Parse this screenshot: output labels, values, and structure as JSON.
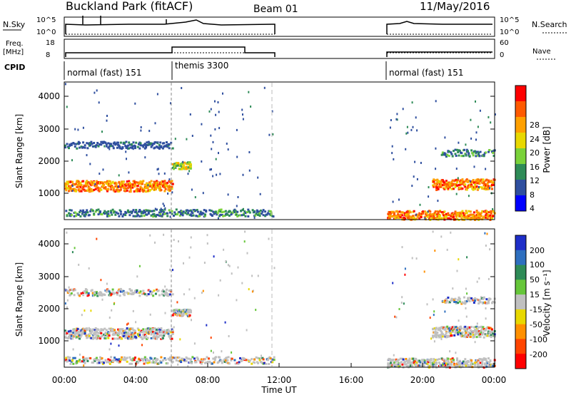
{
  "header": {
    "station": "Buckland Park (fitACF)",
    "beam": "Beam 01",
    "date": "11/May/2016"
  },
  "strips": {
    "nsky_label": "N.Sky",
    "nsearch_label": "N.Search",
    "freq_label_1": "Freq.",
    "freq_label_2": "[MHz]",
    "nave_label": "Nave",
    "cpid_label": "CPID",
    "nsky_ticks": [
      "10^5",
      "10^0"
    ],
    "nsearch_ticks": [
      "10^5",
      "10^0"
    ],
    "freq_ticks": [
      "18",
      "8"
    ],
    "nave_ticks": [
      "60",
      "0"
    ],
    "cpid_segments": [
      {
        "name": "normal (fast) 151",
        "start_h": 0.0,
        "end_h": 6.0
      },
      {
        "name": "themis 3300",
        "start_h": 6.0,
        "end_h": 11.5
      },
      {
        "name": "normal (fast) 151",
        "start_h": 18.0,
        "end_h": 24.0
      }
    ]
  },
  "chart_data": [
    {
      "type": "heatmap",
      "panel": "power",
      "ylabel": "Slant Range [km]",
      "colorbar_label": "Power [dB]",
      "colorbar_ticks": [
        "28",
        "24",
        "20",
        "16",
        "12",
        "8",
        "4"
      ],
      "colorbar_colors": [
        "#ff0000",
        "#ff5a00",
        "#ffa000",
        "#e8d800",
        "#7ad23a",
        "#2e8b57",
        "#2f4f9f",
        "#0000ff"
      ],
      "x_range_h": [
        0,
        24
      ],
      "y_ticks": [
        "4000",
        "3000",
        "2000",
        "1000"
      ],
      "ylim_km": [
        180,
        4500
      ],
      "data_gap_h": [
        11.7,
        18.0
      ],
      "echo_bands_km": [
        {
          "start_h": 0.0,
          "end_h": 6.0,
          "km": 1250,
          "power_db": 28
        },
        {
          "start_h": 0.0,
          "end_h": 6.0,
          "km": 2550,
          "power_db": 8
        },
        {
          "start_h": 0.0,
          "end_h": 11.7,
          "km": 400,
          "power_db": 12
        },
        {
          "start_h": 6.0,
          "end_h": 7.0,
          "km": 1900,
          "power_db": 20
        },
        {
          "start_h": 18.0,
          "end_h": 24.0,
          "km": 300,
          "power_db": 28
        },
        {
          "start_h": 20.5,
          "end_h": 24.0,
          "km": 1300,
          "power_db": 28
        },
        {
          "start_h": 21.0,
          "end_h": 24.0,
          "km": 2300,
          "power_db": 12
        }
      ]
    },
    {
      "type": "heatmap",
      "panel": "velocity",
      "ylabel": "Slant Range [km]",
      "colorbar_label": "Velocity [m s⁻¹]",
      "colorbar_ticks": [
        "200",
        "100",
        "50",
        "15",
        "-15",
        "-50",
        "-100",
        "-200"
      ],
      "colorbar_colors": [
        "#1e2ec8",
        "#2e6fbf",
        "#2e8b57",
        "#66c63a",
        "#c0c0c0",
        "#e8d800",
        "#ff9000",
        "#ff4500",
        "#ff0000"
      ],
      "x_range_h": [
        0,
        24
      ],
      "xlabel": "Time UT",
      "x_ticks": [
        "00:00",
        "04:00",
        "08:00",
        "12:00",
        "16:00",
        "20:00",
        "00:00"
      ],
      "y_ticks": [
        "4000",
        "3000",
        "2000",
        "1000"
      ],
      "ylim_km": [
        180,
        4500
      ]
    }
  ]
}
